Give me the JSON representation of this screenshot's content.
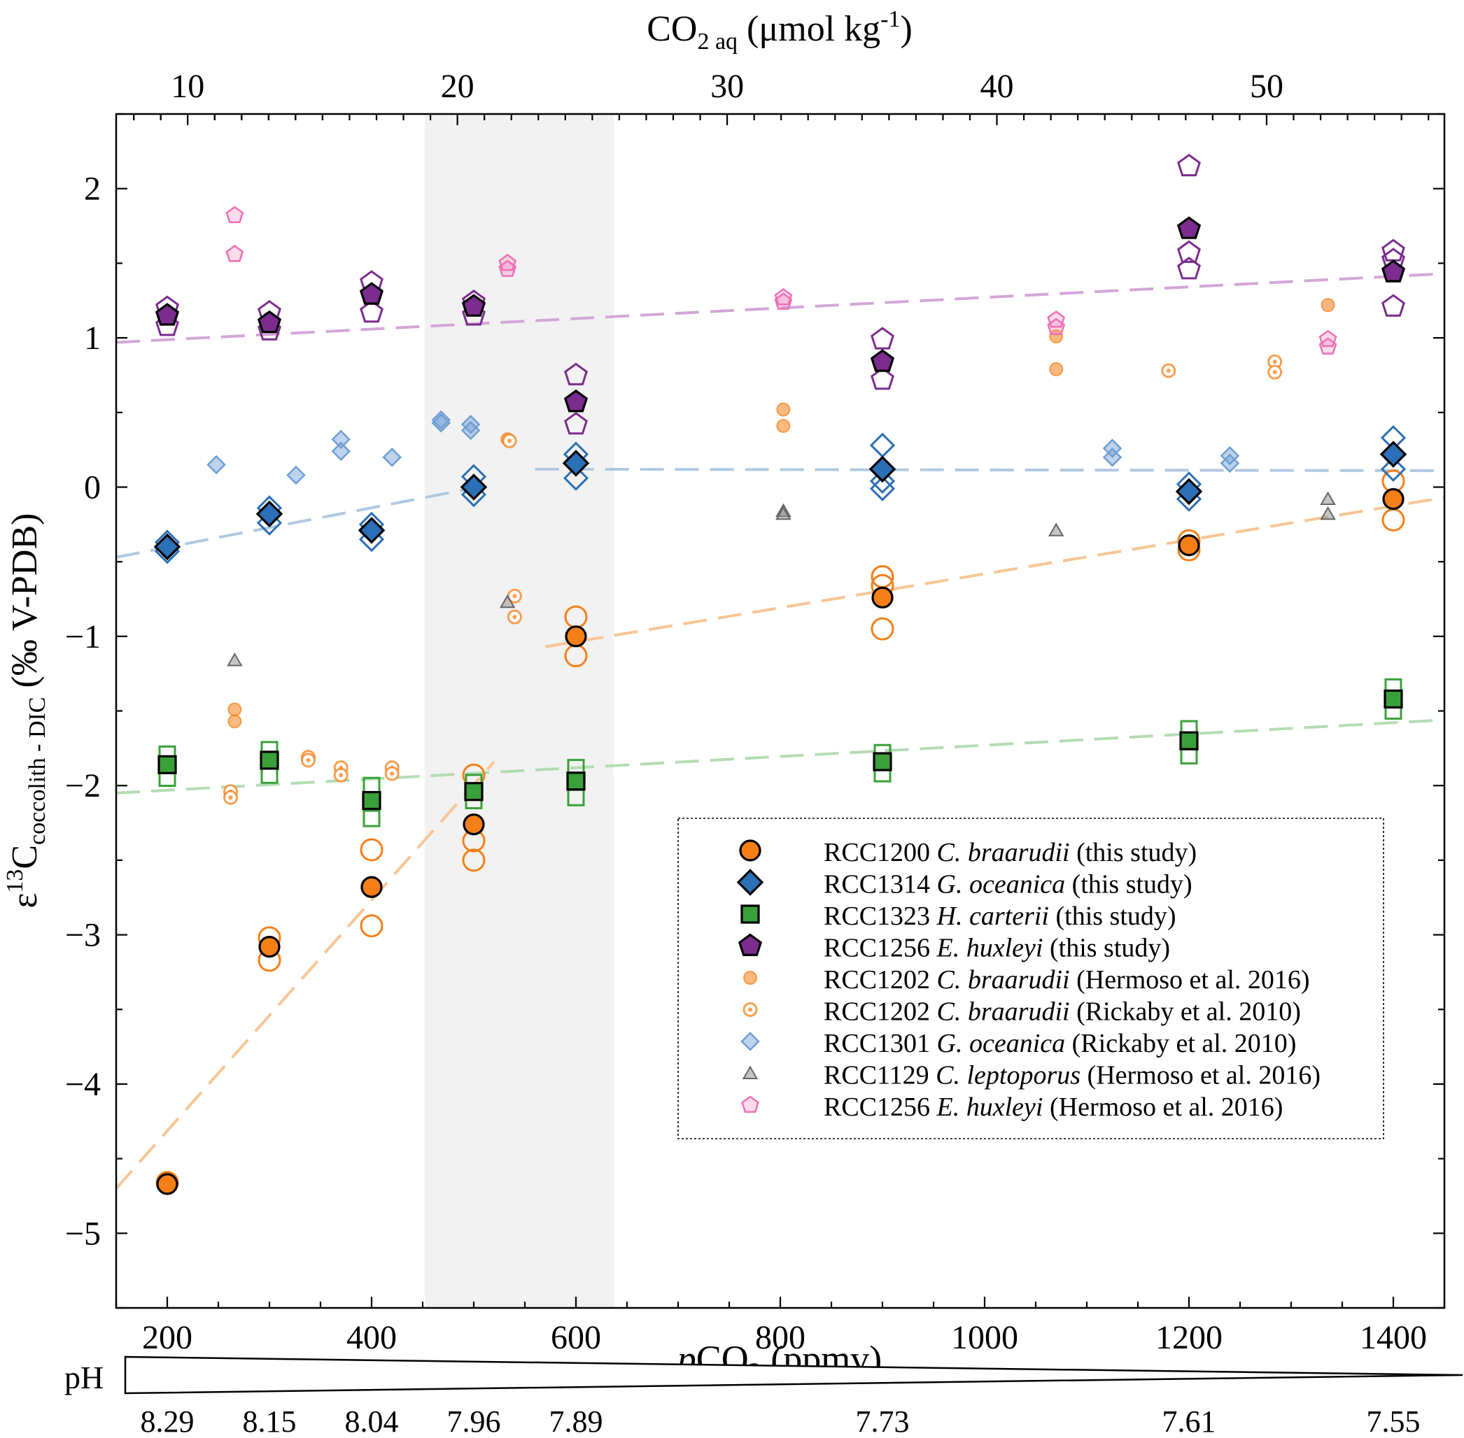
{
  "chart_data": {
    "type": "scatter",
    "xlabel": {
      "italic": "p",
      "main": "CO",
      "sub": "2",
      "tail": " (ppmv)"
    },
    "ylabel": {
      "pre": "ε",
      "sup": "13",
      "main": "C",
      "sub": "coccolith - DIC",
      "tail": " (‰ V-PDB)"
    },
    "top_label": {
      "main": "CO",
      "sub": "2 aq",
      "mid": " (μmol kg",
      "sup": "-1",
      "tail": ")"
    },
    "xlim": [
      150,
      1450
    ],
    "ylim": [
      -5.5,
      2.5
    ],
    "x_ticks": [
      200,
      400,
      600,
      800,
      1000,
      1200,
      1400
    ],
    "x_ticklabels": [
      "200",
      "400",
      "600",
      "800",
      "1000",
      "1200",
      "1400"
    ],
    "y_ticks": [
      2,
      1,
      0,
      -1,
      -2,
      -3,
      -4,
      -5
    ],
    "y_ticklabels": [
      "2",
      "1",
      "0",
      "−1",
      "−2",
      "−3",
      "−4",
      "−5"
    ],
    "top_ticks": [
      {
        "x": 220,
        "label": "10"
      },
      {
        "x": 484,
        "label": "20"
      },
      {
        "x": 748,
        "label": "30"
      },
      {
        "x": 1012,
        "label": "40"
      },
      {
        "x": 1276,
        "label": "50"
      }
    ],
    "shaded_range": [
      452,
      637
    ],
    "colors": {
      "orange": "#f57f17",
      "blue": "#2b6fb6",
      "green": "#3aa03a",
      "purple": "#7b2c8e",
      "pink": "#ef6fb3",
      "gray": "#8c8c8c"
    },
    "series": [
      {
        "name": "RCC1200",
        "species": "C. braarudii",
        "ref": "(this study)",
        "marker": "circle",
        "color": "#f57f17",
        "means": [
          [
            200,
            -4.67
          ],
          [
            300,
            -3.08
          ],
          [
            400,
            -2.68
          ],
          [
            500,
            -2.26
          ],
          [
            600,
            -1.0
          ],
          [
            900,
            -0.74
          ],
          [
            1200,
            -0.39
          ],
          [
            1400,
            -0.08
          ]
        ],
        "replicates": [
          [
            200,
            -4.66
          ],
          [
            300,
            -3.02
          ],
          [
            300,
            -3.17
          ],
          [
            400,
            -2.43
          ],
          [
            400,
            -2.94
          ],
          [
            500,
            -1.93
          ],
          [
            500,
            -2.37
          ],
          [
            500,
            -2.5
          ],
          [
            600,
            -0.87
          ],
          [
            600,
            -1.13
          ],
          [
            900,
            -0.6
          ],
          [
            900,
            -0.66
          ],
          [
            900,
            -0.95
          ],
          [
            1200,
            -0.36
          ],
          [
            1200,
            -0.42
          ],
          [
            1400,
            0.04
          ],
          [
            1400,
            -0.22
          ]
        ]
      },
      {
        "name": "RCC1314",
        "species": "G. oceanica",
        "ref": "(this study)",
        "marker": "diamond",
        "color": "#2b6fb6",
        "means": [
          [
            200,
            -0.4
          ],
          [
            300,
            -0.18
          ],
          [
            400,
            -0.29
          ],
          [
            500,
            0.0
          ],
          [
            600,
            0.16
          ],
          [
            900,
            0.12
          ],
          [
            1200,
            -0.03
          ],
          [
            1400,
            0.22
          ]
        ],
        "replicates": [
          [
            200,
            -0.37
          ],
          [
            200,
            -0.43
          ],
          [
            300,
            -0.14
          ],
          [
            300,
            -0.24
          ],
          [
            400,
            -0.25
          ],
          [
            400,
            -0.35
          ],
          [
            500,
            0.07
          ],
          [
            500,
            -0.05
          ],
          [
            600,
            0.22
          ],
          [
            600,
            0.06
          ],
          [
            900,
            0.28
          ],
          [
            900,
            0.04
          ],
          [
            900,
            -0.01
          ],
          [
            1200,
            0.02
          ],
          [
            1200,
            -0.08
          ],
          [
            1400,
            0.33
          ],
          [
            1400,
            0.12
          ]
        ]
      },
      {
        "name": "RCC1323",
        "species": "H. carterii",
        "ref": "(this study)",
        "marker": "square",
        "color": "#3aa03a",
        "means": [
          [
            200,
            -1.86
          ],
          [
            300,
            -1.83
          ],
          [
            400,
            -2.1
          ],
          [
            500,
            -2.04
          ],
          [
            600,
            -1.97
          ],
          [
            900,
            -1.84
          ],
          [
            1200,
            -1.7
          ],
          [
            1400,
            -1.42
          ]
        ],
        "replicates": [
          [
            200,
            -1.79
          ],
          [
            200,
            -1.95
          ],
          [
            300,
            -1.76
          ],
          [
            300,
            -1.93
          ],
          [
            400,
            -2.0
          ],
          [
            400,
            -2.22
          ],
          [
            500,
            -1.98
          ],
          [
            500,
            -2.1
          ],
          [
            600,
            -1.88
          ],
          [
            600,
            -2.08
          ],
          [
            900,
            -1.78
          ],
          [
            900,
            -1.92
          ],
          [
            1200,
            -1.62
          ],
          [
            1200,
            -1.8
          ],
          [
            1400,
            -1.34
          ],
          [
            1400,
            -1.5
          ]
        ]
      },
      {
        "name": "RCC1256",
        "species": "E. huxleyi",
        "ref": "(this study)",
        "marker": "pentagon",
        "color": "#7b2c8e",
        "means": [
          [
            200,
            1.15
          ],
          [
            300,
            1.1
          ],
          [
            400,
            1.29
          ],
          [
            500,
            1.21
          ],
          [
            600,
            0.57
          ],
          [
            900,
            0.84
          ],
          [
            1200,
            1.73
          ],
          [
            1400,
            1.44
          ]
        ],
        "replicates": [
          [
            200,
            1.2
          ],
          [
            200,
            1.08
          ],
          [
            300,
            1.17
          ],
          [
            300,
            1.05
          ],
          [
            400,
            1.37
          ],
          [
            400,
            1.17
          ],
          [
            500,
            1.24
          ],
          [
            500,
            1.15
          ],
          [
            600,
            0.75
          ],
          [
            600,
            0.42
          ],
          [
            900,
            0.99
          ],
          [
            900,
            0.72
          ],
          [
            1200,
            2.15
          ],
          [
            1200,
            1.57
          ],
          [
            1200,
            1.46
          ],
          [
            1400,
            1.58
          ],
          [
            1400,
            1.52
          ],
          [
            1400,
            1.21
          ]
        ]
      },
      {
        "name": "RCC1202",
        "species": "C. braarudii",
        "ref": "(Hermoso et al. 2016)",
        "marker": "circle-small",
        "color": "#f57f17",
        "points": [
          [
            266,
            -1.49
          ],
          [
            266,
            -1.57
          ],
          [
            533,
            0.32
          ],
          [
            803,
            0.52
          ],
          [
            803,
            0.41
          ],
          [
            1070,
            1.01
          ],
          [
            1070,
            0.79
          ],
          [
            1336,
            1.22
          ]
        ]
      },
      {
        "name": "RCC1202",
        "species": "C. braarudii",
        "ref": "(Rickaby et al. 2010)",
        "marker": "circle-dot",
        "color": "#f57f17",
        "points": [
          [
            262,
            -2.04
          ],
          [
            262,
            -2.08
          ],
          [
            338,
            -1.81
          ],
          [
            338,
            -1.83
          ],
          [
            370,
            -1.88
          ],
          [
            370,
            -1.93
          ],
          [
            420,
            -1.88
          ],
          [
            420,
            -1.92
          ],
          [
            535,
            0.31
          ],
          [
            540,
            -0.73
          ],
          [
            540,
            -0.87
          ],
          [
            1180,
            0.78
          ],
          [
            1284,
            0.84
          ],
          [
            1284,
            0.77
          ]
        ]
      },
      {
        "name": "RCC1301",
        "species": "G. oceanica",
        "ref": "(Rickaby et al. 2010)",
        "marker": "diamond-light",
        "color": "#6f9ed4",
        "points": [
          [
            248,
            0.15
          ],
          [
            326,
            0.08
          ],
          [
            370,
            0.32
          ],
          [
            370,
            0.24
          ],
          [
            420,
            0.2
          ],
          [
            468,
            0.45
          ],
          [
            468,
            0.43
          ],
          [
            497,
            0.42
          ],
          [
            497,
            0.38
          ],
          [
            1125,
            0.26
          ],
          [
            1125,
            0.2
          ],
          [
            1240,
            0.21
          ],
          [
            1240,
            0.16
          ]
        ]
      },
      {
        "name": "RCC1129",
        "species": "C. leptoporus",
        "ref": "(Hermoso et al. 2016)",
        "marker": "triangle",
        "color": "#8c8c8c",
        "points": [
          [
            266,
            -1.16
          ],
          [
            533,
            -0.77
          ],
          [
            803,
            -0.16
          ],
          [
            803,
            -0.18
          ],
          [
            1070,
            -0.29
          ],
          [
            1336,
            -0.08
          ],
          [
            1336,
            -0.18
          ]
        ]
      },
      {
        "name": "RCC1256",
        "species": "E. huxleyi",
        "ref": "(Hermoso et al. 2016)",
        "marker": "pentagon-light",
        "color": "#ef6fb3",
        "points": [
          [
            266,
            1.82
          ],
          [
            266,
            1.56
          ],
          [
            533,
            1.5
          ],
          [
            533,
            1.46
          ],
          [
            803,
            1.27
          ],
          [
            803,
            1.24
          ],
          [
            1070,
            1.12
          ],
          [
            1070,
            1.07
          ],
          [
            1336,
            0.99
          ],
          [
            1336,
            0.94
          ]
        ]
      }
    ],
    "trendlines": [
      {
        "color": "#d4a6d8",
        "from": [
          150,
          0.97
        ],
        "to": [
          1450,
          1.43
        ]
      },
      {
        "color": "#b0c8e0",
        "from": [
          150,
          -0.47
        ],
        "to": [
          520,
          0.02
        ]
      },
      {
        "color": "#b0c8e0",
        "from": [
          560,
          0.12
        ],
        "to": [
          1450,
          0.11
        ]
      },
      {
        "color": "#f8c594",
        "from": [
          150,
          -4.7
        ],
        "to": [
          520,
          -1.84
        ]
      },
      {
        "color": "#f8c594",
        "from": [
          570,
          -1.07
        ],
        "to": [
          1450,
          -0.07
        ]
      },
      {
        "color": "#b2dcb2",
        "from": [
          150,
          -2.05
        ],
        "to": [
          1450,
          -1.56
        ]
      }
    ],
    "ph": {
      "label": "pH",
      "values": [
        {
          "x": 200,
          "label": "8.29"
        },
        {
          "x": 300,
          "label": "8.15"
        },
        {
          "x": 400,
          "label": "8.04"
        },
        {
          "x": 500,
          "label": "7.96"
        },
        {
          "x": 600,
          "label": "7.89"
        },
        {
          "x": 900,
          "label": "7.73"
        },
        {
          "x": 1200,
          "label": "7.61"
        },
        {
          "x": 1400,
          "label": "7.55"
        }
      ]
    }
  }
}
